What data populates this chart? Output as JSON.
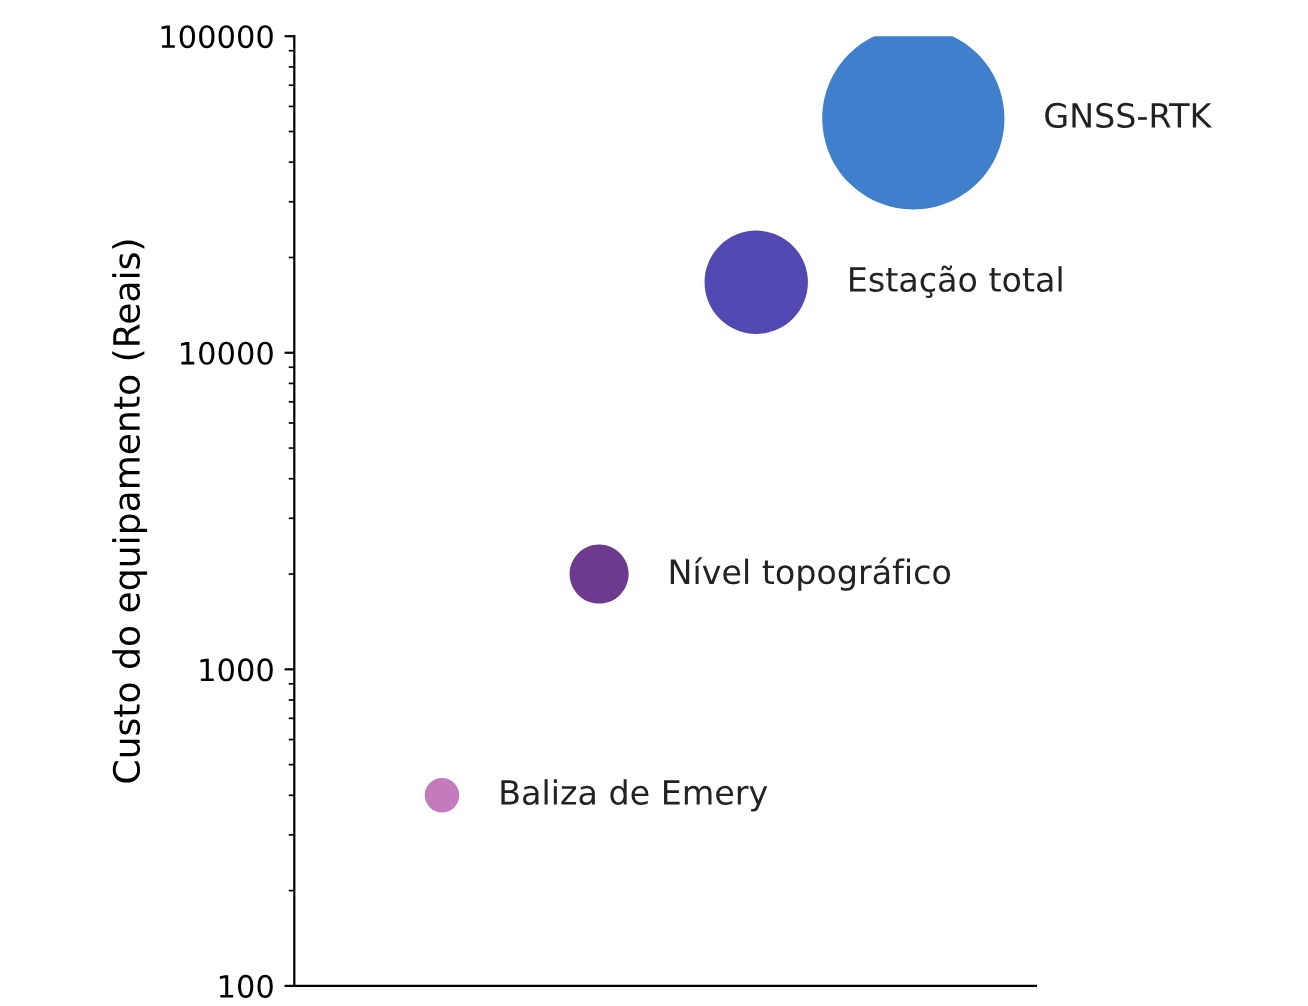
{
  "chart_data": {
    "type": "bubble",
    "ylabel": "Custo do equipamento (Reais)",
    "categories": [
      null,
      null,
      null,
      null
    ],
    "series": [
      {
        "name": "Baliza de Emery",
        "color": "#c47bbd",
        "values": [
          400,
          null,
          null,
          null
        ],
        "sizes": [
          0.036,
          null,
          null,
          null
        ]
      },
      {
        "name": "Nível topográfico",
        "color": "#6e3a8e",
        "values": [
          null,
          2000,
          null,
          null
        ],
        "sizes": [
          null,
          0.105,
          null,
          null
        ]
      },
      {
        "name": "Estação total",
        "color": "#5249b3",
        "values": [
          null,
          null,
          16700,
          null
        ],
        "sizes": [
          null,
          null,
          0.322,
          null
        ]
      },
      {
        "name": "GNSS-RTK",
        "color": "#3f7fcb",
        "values": [
          null,
          null,
          null,
          55000
        ],
        "sizes": [
          null,
          null,
          null,
          1
        ]
      }
    ],
    "log": "y",
    "ylim": [
      100,
      100000
    ],
    "yticks": [
      100,
      1000,
      10000,
      100000
    ],
    "tick_labels": "y",
    "grid": false,
    "legend": false
  }
}
